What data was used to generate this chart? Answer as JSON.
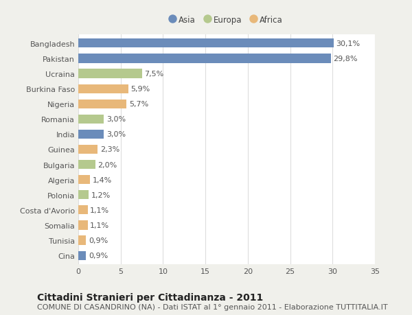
{
  "countries": [
    "Bangladesh",
    "Pakistan",
    "Ucraina",
    "Burkina Faso",
    "Nigeria",
    "Romania",
    "India",
    "Guinea",
    "Bulgaria",
    "Algeria",
    "Polonia",
    "Costa d'Avorio",
    "Somalia",
    "Tunisia",
    "Cina"
  ],
  "values": [
    30.1,
    29.8,
    7.5,
    5.9,
    5.7,
    3.0,
    3.0,
    2.3,
    2.0,
    1.4,
    1.2,
    1.1,
    1.1,
    0.9,
    0.9
  ],
  "labels": [
    "30,1%",
    "29,8%",
    "7,5%",
    "5,9%",
    "5,7%",
    "3,0%",
    "3,0%",
    "2,3%",
    "2,0%",
    "1,4%",
    "1,2%",
    "1,1%",
    "1,1%",
    "0,9%",
    "0,9%"
  ],
  "continents": [
    "Asia",
    "Asia",
    "Europa",
    "Africa",
    "Africa",
    "Europa",
    "Asia",
    "Africa",
    "Europa",
    "Africa",
    "Europa",
    "Africa",
    "Africa",
    "Africa",
    "Asia"
  ],
  "colors": {
    "Asia": "#6b8cba",
    "Europa": "#b5c98e",
    "Africa": "#e8b87a"
  },
  "legend_order": [
    "Asia",
    "Europa",
    "Africa"
  ],
  "title": "Cittadini Stranieri per Cittadinanza - 2011",
  "subtitle": "COMUNE DI CASANDRINO (NA) - Dati ISTAT al 1° gennaio 2011 - Elaborazione TUTTITALIA.IT",
  "xlim": [
    0,
    35
  ],
  "xticks": [
    0,
    5,
    10,
    15,
    20,
    25,
    30,
    35
  ],
  "bg_color": "#f0f0eb",
  "plot_bg_color": "#ffffff",
  "grid_color": "#dddddd",
  "title_fontsize": 10,
  "subtitle_fontsize": 8,
  "label_fontsize": 8,
  "tick_fontsize": 8,
  "bar_height": 0.6
}
